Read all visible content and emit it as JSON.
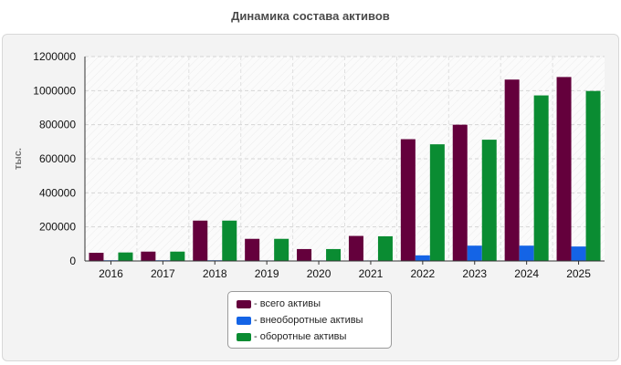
{
  "title": "Динамика состава активов",
  "chart_data": {
    "type": "bar",
    "title": "Динамика состава активов",
    "xlabel": "",
    "ylabel": "тыс.",
    "ylim": [
      0,
      1200000
    ],
    "yticks": [
      0,
      200000,
      400000,
      600000,
      800000,
      1000000,
      1200000
    ],
    "grid": true,
    "legend_position": "bottom",
    "categories": [
      "2016",
      "2017",
      "2018",
      "2019",
      "2020",
      "2021",
      "2022",
      "2023",
      "2024",
      "2025"
    ],
    "series": [
      {
        "name": "- всего активы",
        "color": "#64003c",
        "values": [
          48000,
          55000,
          237000,
          130000,
          70000,
          147000,
          715000,
          800000,
          1065000,
          1080000
        ]
      },
      {
        "name": "- внеоборотные активы",
        "color": "#1464e6",
        "values": [
          4000,
          4000,
          4000,
          3000,
          3000,
          3000,
          33000,
          90000,
          90000,
          85000
        ]
      },
      {
        "name": "- оборотные активы",
        "color": "#0a8c32",
        "values": [
          50000,
          55000,
          237000,
          130000,
          70000,
          145000,
          685000,
          712000,
          972000,
          998000
        ]
      }
    ]
  }
}
